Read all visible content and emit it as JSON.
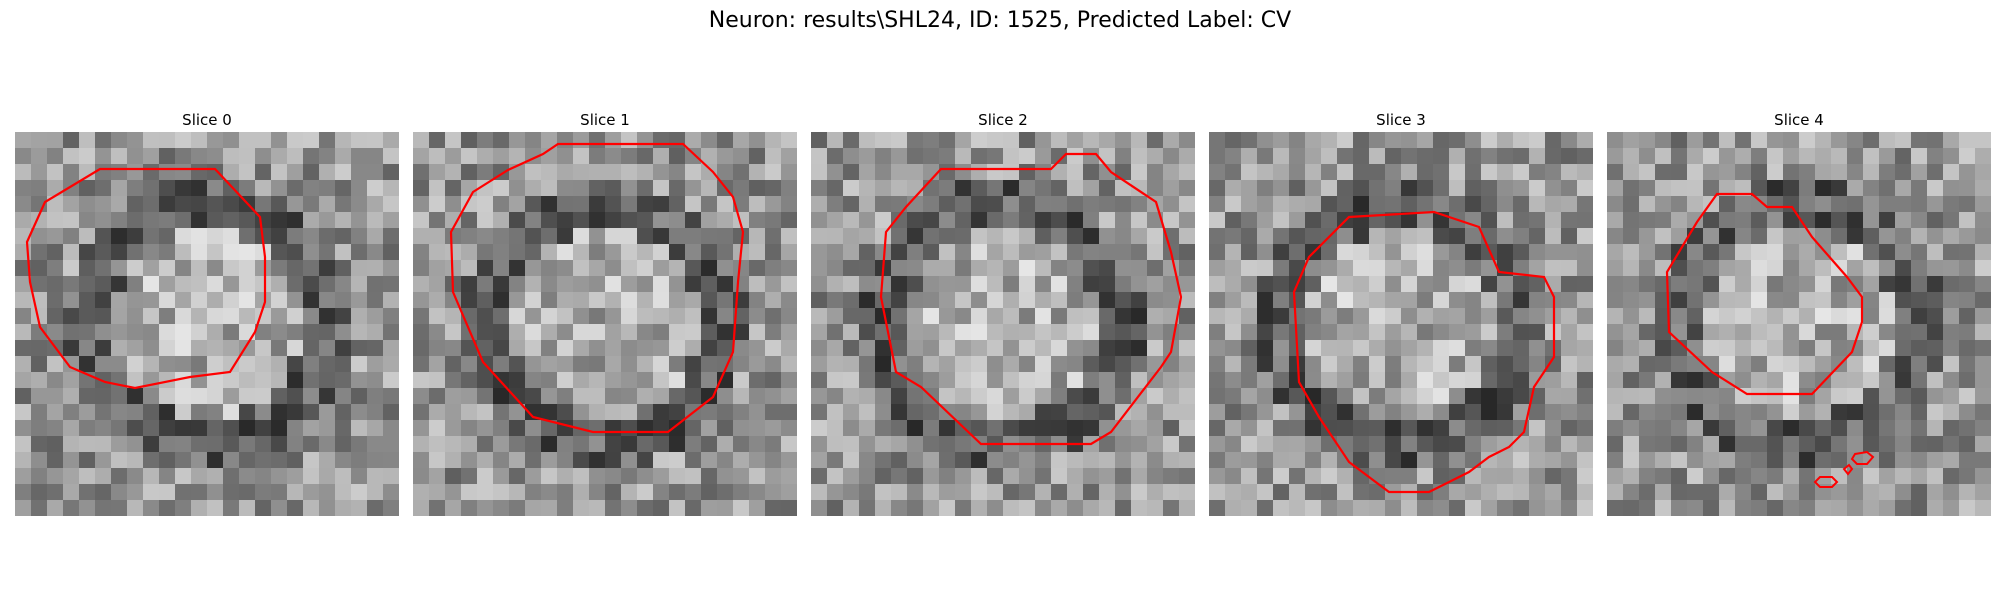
{
  "figure": {
    "title": "Neuron: results\\SHL24, ID: 1525, Predicted Label: CV"
  },
  "colors": {
    "contour": "#ff0000",
    "background": "#ffffff"
  },
  "panels": [
    {
      "label": "Slice 0"
    },
    {
      "label": "Slice 1"
    },
    {
      "label": "Slice 2"
    },
    {
      "label": "Slice 3"
    },
    {
      "label": "Slice 4"
    }
  ]
}
